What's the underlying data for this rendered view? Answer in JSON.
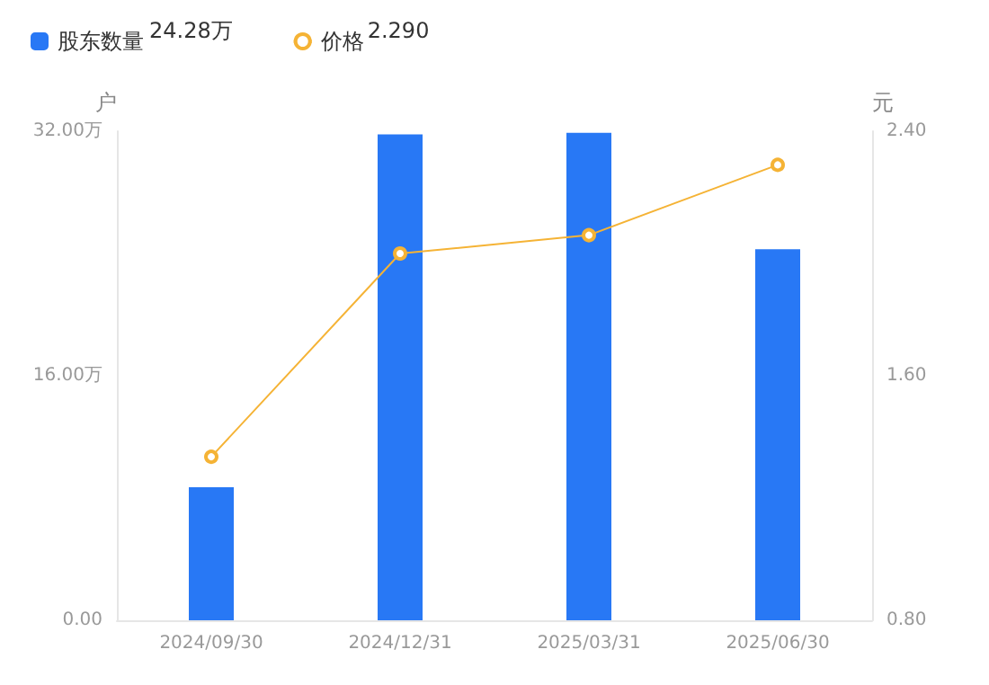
{
  "chart_data": {
    "type": "bar",
    "categories": [
      "2024/09/30",
      "2024/12/31",
      "2025/03/31",
      "2025/06/30"
    ],
    "ylabel": "户",
    "y2label": "元",
    "series": [
      {
        "name": "股东数量",
        "color": "#2878f5",
        "values": [
          8.7,
          31.8,
          31.9,
          24.28
        ]
      },
      {
        "name": "价格",
        "type": "line",
        "axis": "y2",
        "color": "#f5b335",
        "marker": "circle",
        "values": [
          1.335,
          2.0,
          2.06,
          2.29
        ]
      }
    ],
    "annotations": [
      "24.28万",
      "2.290"
    ],
    "ylim": [
      0,
      32
    ],
    "yticks": [
      {
        "value": 0,
        "label": "0.00"
      },
      {
        "value": 16,
        "label": "16.00万"
      },
      {
        "value": 32,
        "label": "32.00万"
      }
    ],
    "y2lim": [
      0.8,
      2.4
    ],
    "y2ticks": [
      {
        "value": 0.8,
        "label": "0.80"
      },
      {
        "value": 1.6,
        "label": "1.60"
      },
      {
        "value": 2.4,
        "label": "2.40"
      }
    ],
    "grid": false,
    "legend": "top left"
  }
}
